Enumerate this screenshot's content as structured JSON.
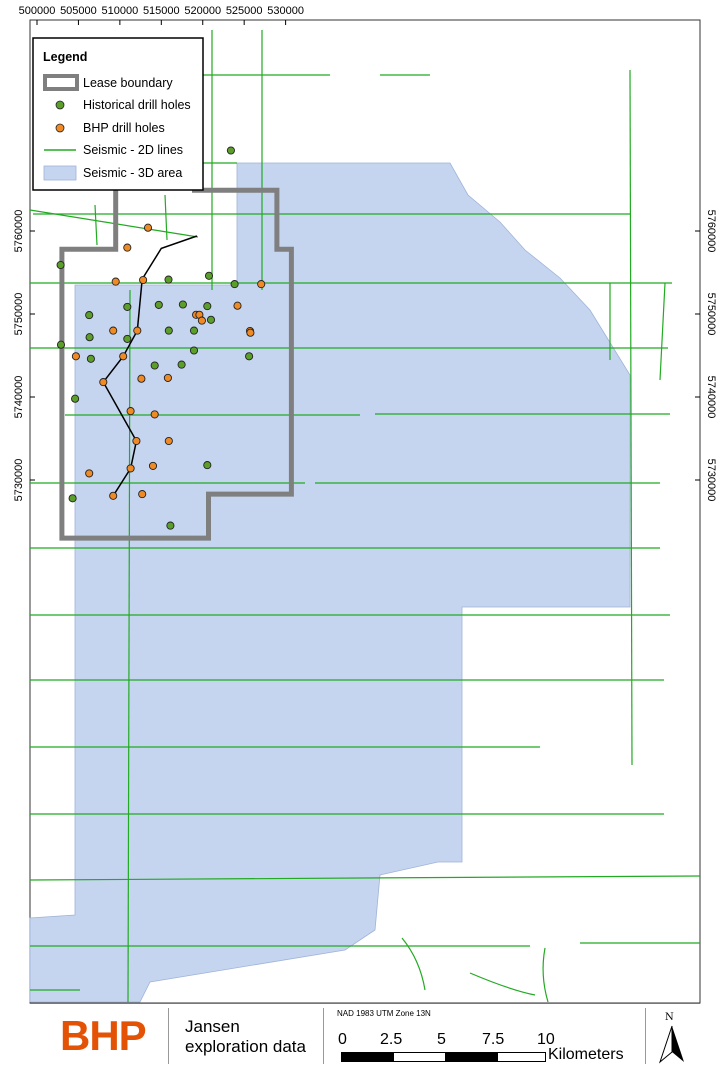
{
  "colors": {
    "lease": "#7f7f7f",
    "seismic3d": "#c5d5ef",
    "seismic2d": "#22aa22",
    "historical": "#5b9e2a",
    "bhp": "#f08a24",
    "brand": "#e35205"
  },
  "axes": {
    "x_ticks": [
      "500000",
      "505000",
      "510000",
      "515000",
      "520000",
      "525000",
      "530000"
    ],
    "y_ticks": [
      "5760000",
      "5750000",
      "5740000",
      "5730000"
    ]
  },
  "legend": {
    "title": "Legend",
    "items": {
      "lease": "Lease boundary",
      "historical": "Historical drill holes",
      "bhp": "BHP drill holes",
      "lines2d": "Seismic - 2D lines",
      "area3d": "Seismic - 3D area"
    }
  },
  "footer": {
    "brand": "BHP",
    "title_line1": "Jansen",
    "title_line2": "exploration data",
    "projection": "NAD 1983 UTM Zone 13N",
    "scale_labels": [
      "0",
      "2.5",
      "5",
      "7.5",
      "10"
    ],
    "scale_unit": "Kilometers",
    "north": "N"
  },
  "map_data": {
    "crs": "NAD 1983 UTM Zone 13N",
    "historical_drill_holes": [
      [
        523400,
        5769700
      ],
      [
        502850,
        5755900
      ],
      [
        515870,
        5754150
      ],
      [
        520750,
        5754600
      ],
      [
        523850,
        5753600
      ],
      [
        510900,
        5750850
      ],
      [
        514700,
        5751100
      ],
      [
        517600,
        5751150
      ],
      [
        520550,
        5750950
      ],
      [
        506300,
        5749870
      ],
      [
        521000,
        5749300
      ],
      [
        515900,
        5748000
      ],
      [
        518950,
        5748000
      ],
      [
        506350,
        5747200
      ],
      [
        510900,
        5747000
      ],
      [
        502900,
        5746300
      ],
      [
        518950,
        5745600
      ],
      [
        506500,
        5744600
      ],
      [
        525600,
        5744900
      ],
      [
        514200,
        5743800
      ],
      [
        517450,
        5743900
      ],
      [
        504600,
        5739800
      ],
      [
        520550,
        5731800
      ],
      [
        516100,
        5724500
      ],
      [
        504300,
        5727800
      ]
    ],
    "bhp_drill_holes": [
      [
        513400,
        5760400
      ],
      [
        510900,
        5758000
      ],
      [
        509500,
        5753900
      ],
      [
        512800,
        5754100
      ],
      [
        527050,
        5753600
      ],
      [
        524200,
        5751000
      ],
      [
        519200,
        5749900
      ],
      [
        519600,
        5749900
      ],
      [
        519900,
        5749200
      ],
      [
        509200,
        5748000
      ],
      [
        512100,
        5748000
      ],
      [
        525700,
        5747950
      ],
      [
        525750,
        5747750
      ],
      [
        504700,
        5744900
      ],
      [
        510400,
        5744900
      ],
      [
        512600,
        5742200
      ],
      [
        515800,
        5742300
      ],
      [
        508000,
        5741800
      ],
      [
        511300,
        5738300
      ],
      [
        514200,
        5737900
      ],
      [
        512000,
        5734700
      ],
      [
        515900,
        5734700
      ],
      [
        511300,
        5731400
      ],
      [
        514000,
        5731700
      ],
      [
        506300,
        5730800
      ],
      [
        509200,
        5728100
      ],
      [
        512700,
        5728300
      ]
    ],
    "drill_profile_line": [
      [
        519300,
        5759400
      ],
      [
        515000,
        5757900
      ],
      [
        512700,
        5754200
      ],
      [
        512100,
        5748000
      ],
      [
        510400,
        5744900
      ],
      [
        508000,
        5741800
      ],
      [
        512000,
        5734700
      ],
      [
        511300,
        5731400
      ],
      [
        509200,
        5728100
      ]
    ],
    "lease_boundary": [
      [
        509500,
        5766500
      ],
      [
        519000,
        5766500
      ],
      [
        519000,
        5764900
      ],
      [
        528950,
        5764900
      ],
      [
        528950,
        5757800
      ],
      [
        530700,
        5757800
      ],
      [
        530700,
        5728300
      ],
      [
        520700,
        5728300
      ],
      [
        520700,
        5723000
      ],
      [
        503000,
        5723000
      ],
      [
        503000,
        5757800
      ],
      [
        509500,
        5757800
      ],
      [
        509500,
        5766500
      ]
    ]
  }
}
